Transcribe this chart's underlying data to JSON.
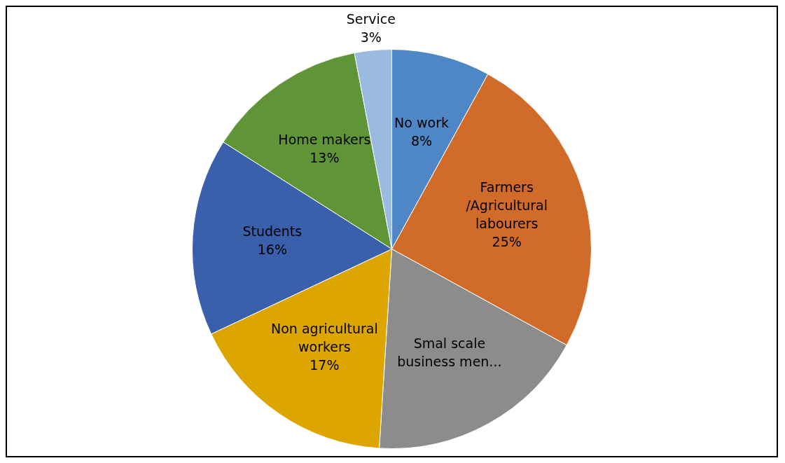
{
  "chart_data": {
    "type": "pie",
    "categories": [
      "No work",
      "Farmers /Agricultural labourers",
      "Smal scale business men...",
      "Non agricultural workers",
      "Students",
      "Home makers",
      "Service"
    ],
    "values": [
      8,
      25,
      18,
      17,
      16,
      13,
      3
    ],
    "colors": [
      "#4f86c6",
      "#d06b2a",
      "#8c8c8c",
      "#dda500",
      "#3a5fab",
      "#5f9537",
      "#9bbae0"
    ],
    "value_labels": [
      "8%",
      "25%",
      null,
      "17%",
      "16%",
      "13%",
      "3%"
    ],
    "legend": false
  }
}
